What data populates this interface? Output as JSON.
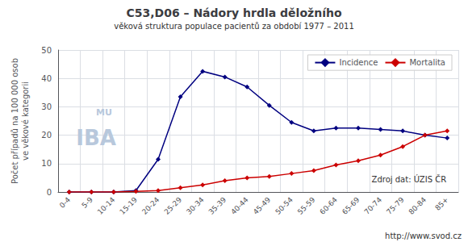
{
  "chart_data": {
    "type": "line",
    "title": "C53,D06 – Nádory hrdla děložního",
    "subtitle": "věková struktura populace pacientů za období 1977 – 2011",
    "ylabel": "Počet případů na 100 000 osob\nve věkové kategorii",
    "annotations": [
      "Zdroj dat: ÚZIS ČR",
      "http://www.svod.cz",
      "MU",
      "IBA"
    ],
    "categories": [
      "0-4",
      "5-9",
      "10-14",
      "15-19",
      "20-24",
      "25-29",
      "30-34",
      "35-39",
      "40-44",
      "45-49",
      "50-54",
      "55-59",
      "60-64",
      "65-69",
      "70-74",
      "75-79",
      "80-84",
      "85+"
    ],
    "series": [
      {
        "name": "Incidence",
        "color": "#000080",
        "values": [
          0.0,
          0.0,
          0.0,
          0.5,
          11.5,
          33.5,
          42.5,
          40.5,
          37.0,
          30.5,
          24.5,
          21.5,
          22.5,
          22.5,
          22.0,
          21.5,
          20.0,
          19.0
        ]
      },
      {
        "name": "Mortalita",
        "color": "#CC0000",
        "values": [
          0.0,
          0.0,
          0.0,
          0.2,
          0.5,
          1.5,
          2.5,
          4.0,
          5.0,
          5.5,
          6.5,
          7.5,
          9.5,
          11.0,
          13.0,
          16.0,
          20.0,
          21.5
        ]
      }
    ],
    "ylim": [
      0,
      50
    ],
    "yticks": [
      0,
      10,
      20,
      30,
      40,
      50
    ],
    "grid": true,
    "legend": "upper right",
    "marker": "diamond",
    "line_style": "solid"
  }
}
